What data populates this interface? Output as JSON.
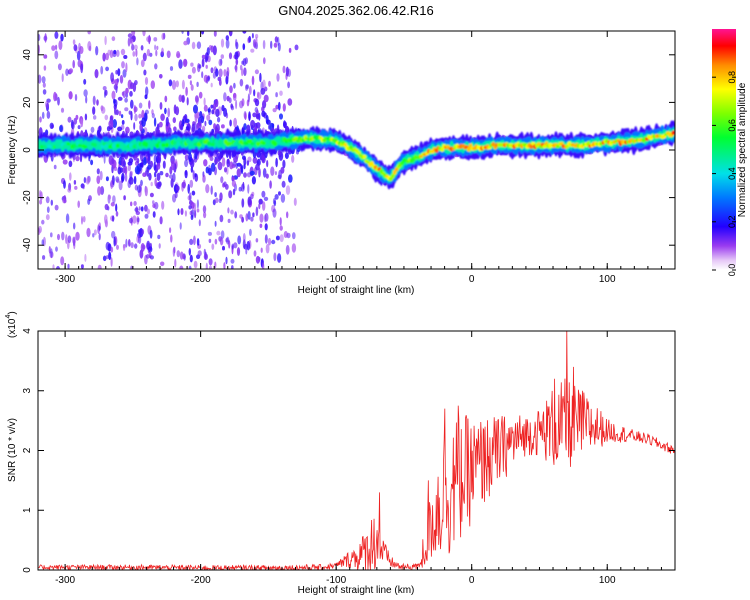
{
  "title": "GN04.2025.362.06.42.R16",
  "chart_data": [
    {
      "type": "heatmap",
      "xlabel": "Height of straight line (km)",
      "ylabel": "Frequency (Hz)",
      "xlim": [
        -320,
        150
      ],
      "ylim": [
        -50,
        50
      ],
      "x_ticks": [
        -300,
        -200,
        -100,
        0,
        100
      ],
      "y_ticks": [
        -40,
        -20,
        0,
        20,
        40
      ],
      "colorbar": {
        "label": "Normalized spectral amplitude",
        "range": [
          0,
          1
        ],
        "ticks": [
          0.0,
          0.2,
          0.4,
          0.6,
          0.8
        ],
        "tick_labels": [
          "0.0",
          "0.2",
          "0.4",
          "0.6",
          "0.8"
        ]
      },
      "ridge": {
        "x": [
          -320,
          -300,
          -250,
          -200,
          -150,
          -120,
          -100,
          -90,
          -80,
          -70,
          -60,
          -55,
          -50,
          -40,
          -30,
          -20,
          0,
          20,
          50,
          80,
          100,
          120,
          140,
          150
        ],
        "freq": [
          2,
          2,
          2,
          3,
          3,
          5,
          4,
          1,
          -3,
          -8,
          -12,
          -8,
          -5,
          -3,
          0,
          1,
          1,
          2,
          2,
          2,
          3,
          4,
          6,
          7
        ],
        "amplitude": [
          0.45,
          0.45,
          0.45,
          0.5,
          0.5,
          0.6,
          0.6,
          0.65,
          0.7,
          0.8,
          0.75,
          0.65,
          0.6,
          0.65,
          0.75,
          0.8,
          0.8,
          0.75,
          0.85,
          0.85,
          0.8,
          0.85,
          0.9,
          0.9
        ]
      }
    },
    {
      "type": "line",
      "xlabel": "Height of straight line (km)",
      "ylabel": "SNR (10 * v/v)",
      "y_scale_label": "(x10",
      "y_scale_exp": "4",
      "y_scale_close": ")",
      "xlim": [
        -320,
        150
      ],
      "ylim": [
        0,
        4
      ],
      "x_ticks": [
        -300,
        -200,
        -100,
        0,
        100
      ],
      "y_ticks": [
        0,
        1,
        2,
        3,
        4
      ],
      "series": [
        {
          "name": "SNR",
          "color": "#ee2222",
          "envelope_x": [
            -320,
            -250,
            -200,
            -150,
            -110,
            -100,
            -90,
            -80,
            -75,
            -70,
            -65,
            -60,
            -55,
            -50,
            -45,
            -40,
            -35,
            -30,
            -25,
            -20,
            -15,
            -10,
            -5,
            0,
            10,
            20,
            30,
            40,
            50,
            60,
            70,
            80,
            90,
            100,
            110,
            120,
            130,
            140,
            150
          ],
          "envelope_y": [
            0.05,
            0.05,
            0.04,
            0.04,
            0.05,
            0.08,
            0.2,
            0.3,
            0.45,
            0.6,
            0.3,
            0.15,
            0.08,
            0.05,
            0.05,
            0.1,
            0.35,
            0.8,
            1.15,
            1.4,
            1.5,
            1.6,
            1.7,
            1.75,
            1.9,
            2.05,
            2.2,
            2.3,
            2.35,
            2.45,
            2.5,
            2.5,
            2.45,
            2.35,
            2.3,
            2.25,
            2.2,
            2.1,
            2.0
          ],
          "noise_x": [
            -320,
            -100,
            -90,
            -80,
            -75,
            -70,
            -65,
            -60,
            -50,
            -40,
            -30,
            -20,
            -10,
            0,
            20,
            40,
            50,
            60,
            70,
            80,
            90,
            100,
            120,
            150
          ],
          "noise_y": [
            0.04,
            0.05,
            0.15,
            0.35,
            0.5,
            0.55,
            0.25,
            0.1,
            0.05,
            0.1,
            0.6,
            1.2,
            1.1,
            0.9,
            0.6,
            0.35,
            0.4,
            0.7,
            0.8,
            0.6,
            0.45,
            0.2,
            0.1,
            0.08
          ],
          "peaks": [
            {
              "x": 70,
              "y": 4.05
            },
            {
              "x": 75,
              "y": 3.4
            },
            {
              "x": 61,
              "y": 3.2
            },
            {
              "x": 82,
              "y": 3.0
            },
            {
              "x": -20,
              "y": 2.7
            },
            {
              "x": -10,
              "y": 2.75
            },
            {
              "x": -68,
              "y": 1.3
            },
            {
              "x": -32,
              "y": 1.5
            },
            {
              "x": 10,
              "y": 2.4
            }
          ]
        }
      ]
    }
  ]
}
